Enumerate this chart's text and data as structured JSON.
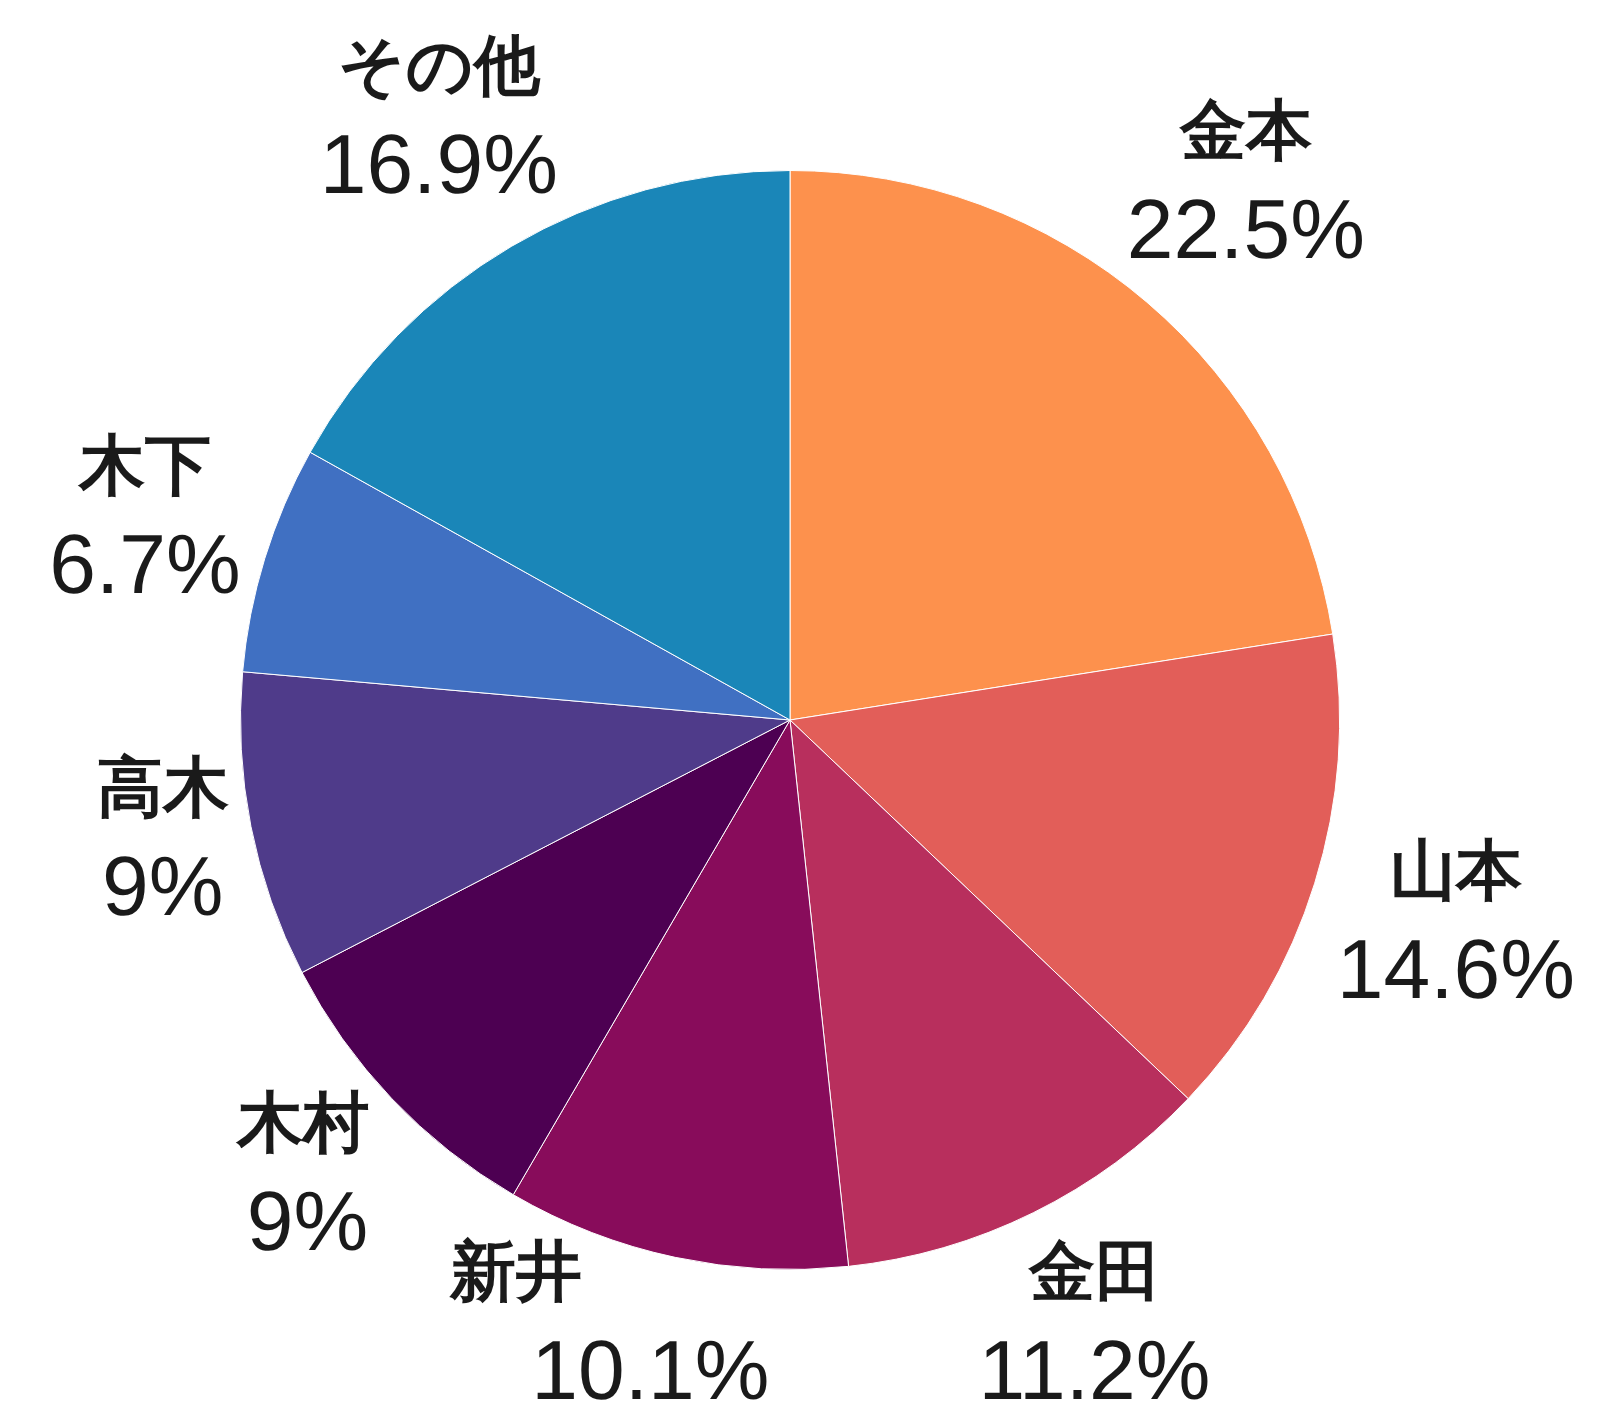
{
  "chart_data": {
    "type": "pie",
    "categories": [
      "金本",
      "山本",
      "金田",
      "新井",
      "木村",
      "高木",
      "木下",
      "その他"
    ],
    "values": [
      22.5,
      14.6,
      11.2,
      10.1,
      9,
      9,
      6.7,
      16.9
    ],
    "colors": [
      "#fd914d",
      "#e25e59",
      "#b82f5d",
      "#880c5b",
      "#4d0052",
      "#4f3b8a",
      "#4070c2",
      "#1a86b8"
    ],
    "value_labels": [
      "22.5%",
      "14.6%",
      "11.2%",
      "10.1%",
      "9%",
      "9%",
      "6.7%",
      "16.9%"
    ]
  }
}
